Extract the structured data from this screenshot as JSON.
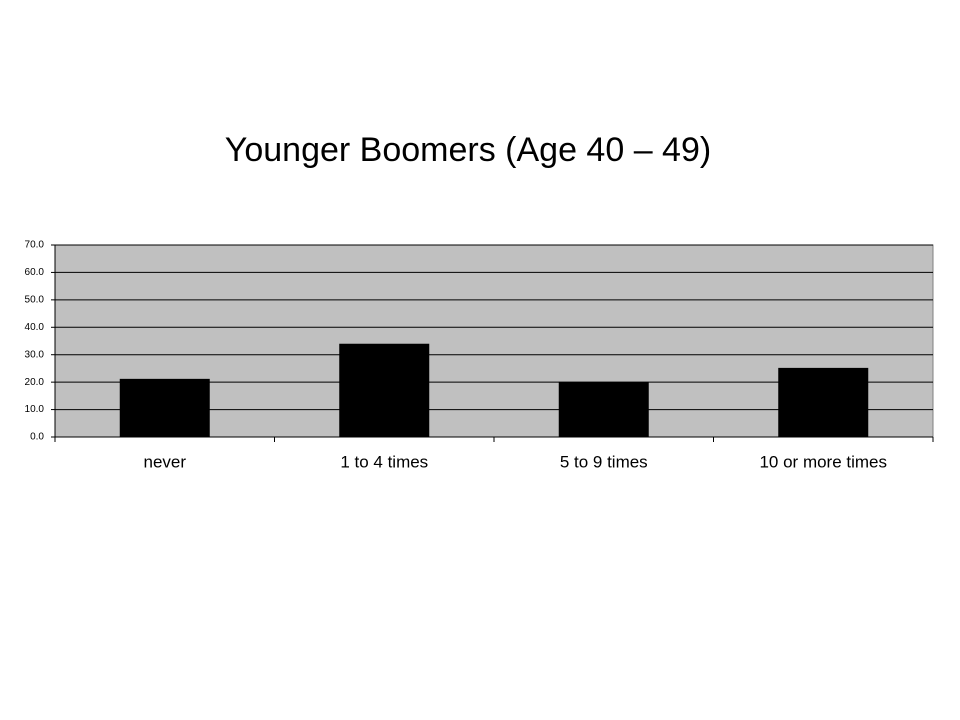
{
  "chart_data": {
    "type": "bar",
    "title": "Younger Boomers (Age 40 – 49)",
    "categories": [
      "never",
      "1 to 4 times",
      "5 to 9 times",
      "10 or more times"
    ],
    "values": [
      21.2,
      34.0,
      20.1,
      25.2
    ],
    "color": "#000000",
    "ylim": [
      0,
      70
    ],
    "yticks": [
      {
        "value": 0,
        "label": "0.0"
      },
      {
        "value": 10,
        "label": "10.0"
      },
      {
        "value": 20,
        "label": "20.0"
      },
      {
        "value": 30,
        "label": "30.0"
      },
      {
        "value": 40,
        "label": "40.0"
      },
      {
        "value": 50,
        "label": "50.0"
      },
      {
        "value": 60,
        "label": "60.0"
      },
      {
        "value": 70,
        "label": "70.0"
      }
    ],
    "grid": true
  }
}
